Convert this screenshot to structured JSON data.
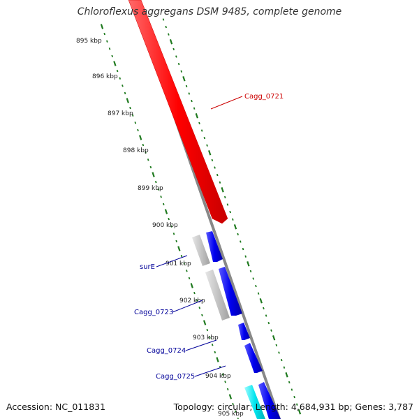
{
  "title": "Chloroflexus aggregans DSM 9485, complete genome",
  "footer": {
    "accession": "Accession: NC_011831",
    "stats": "Topology: circular; Length: 4,684,931 bp; Genes: 3,787"
  },
  "colors": {
    "backbone": "#8a8a8a",
    "tick": "#1f7a1f",
    "forward_gene": "#ff0000",
    "reverse_gene": "#0000ee",
    "pseudo_gene": "#c4c4c4",
    "rna_gene": "#00e5ee",
    "label_red": "#cc0000",
    "label_blue": "#000099"
  },
  "scale_labels": [
    "895 kbp",
    "896 kbp",
    "897 kbp",
    "898 kbp",
    "899 kbp",
    "900 kbp",
    "901 kbp",
    "902 kbp",
    "903 kbp",
    "904 kbp",
    "905 kbp"
  ],
  "gene_labels": [
    {
      "name": "Cagg_0721",
      "color": "label_red"
    },
    {
      "name": "surE",
      "color": "label_blue"
    },
    {
      "name": "Cagg_0723",
      "color": "label_blue"
    },
    {
      "name": "Cagg_0724",
      "color": "label_blue"
    },
    {
      "name": "Cagg_0725",
      "color": "label_blue"
    }
  ]
}
